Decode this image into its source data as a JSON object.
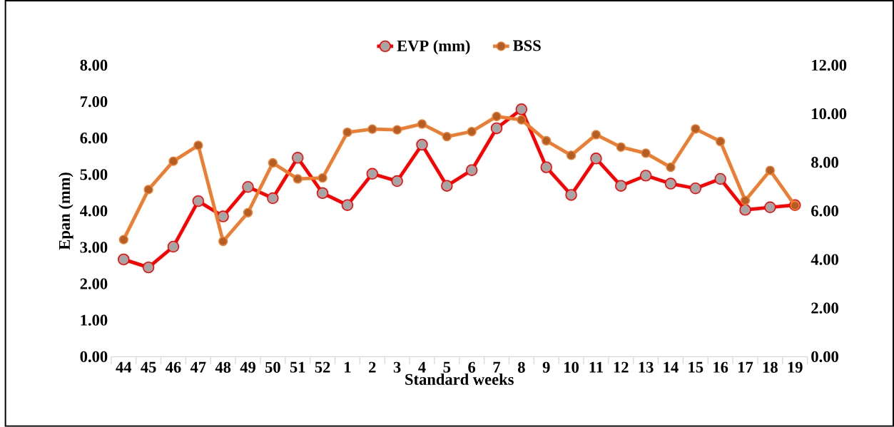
{
  "chart_data": {
    "type": "line",
    "xlabel": "Standard weeks",
    "ylabel": "Epan (mm)",
    "categories": [
      "44",
      "45",
      "46",
      "47",
      "48",
      "49",
      "50",
      "51",
      "52",
      "1",
      "2",
      "3",
      "4",
      "5",
      "6",
      "7",
      "8",
      "9",
      "10",
      "11",
      "12",
      "13",
      "14",
      "15",
      "16",
      "17",
      "18",
      "19"
    ],
    "series": [
      {
        "name": "EVP (mm)",
        "color": "#ff0000",
        "values": [
          2.67,
          2.45,
          3.02,
          4.27,
          3.85,
          4.66,
          4.35,
          5.46,
          4.49,
          4.16,
          5.02,
          4.82,
          5.82,
          4.69,
          5.12,
          6.27,
          6.79,
          5.2,
          4.44,
          5.44,
          4.69,
          4.97,
          4.75,
          4.62,
          4.88,
          4.03,
          4.1,
          4.16
        ]
      },
      {
        "name": "BSS",
        "color": "#ed7d31",
        "axis": "y2",
        "values": [
          4.82,
          6.88,
          8.05,
          8.7,
          4.75,
          5.93,
          7.98,
          7.32,
          7.36,
          9.24,
          9.37,
          9.34,
          9.58,
          9.06,
          9.27,
          9.89,
          9.75,
          8.89,
          8.29,
          9.14,
          8.63,
          8.38,
          7.8,
          9.38,
          8.86,
          6.43,
          7.67,
          6.22
        ]
      }
    ],
    "ylim": [
      0,
      8
    ],
    "yticks": [
      {
        "value": 0,
        "label": "0.00"
      },
      {
        "value": 1,
        "label": "1.00"
      },
      {
        "value": 2,
        "label": "2.00"
      },
      {
        "value": 3,
        "label": "3.00"
      },
      {
        "value": 4,
        "label": "4.00"
      },
      {
        "value": 5,
        "label": "5.00"
      },
      {
        "value": 6,
        "label": "6.00"
      },
      {
        "value": 7,
        "label": "7.00"
      },
      {
        "value": 8,
        "label": "8.00"
      }
    ],
    "y2lim": [
      0,
      12
    ],
    "y2ticks": [
      {
        "value": 0,
        "label": "0.00"
      },
      {
        "value": 2,
        "label": "2.00"
      },
      {
        "value": 4,
        "label": "4.00"
      },
      {
        "value": 6,
        "label": "6.00"
      },
      {
        "value": 8,
        "label": "8.00"
      },
      {
        "value": 10,
        "label": "10.00"
      },
      {
        "value": 12,
        "label": "12.00"
      }
    ],
    "legend": "top",
    "marker": "circle",
    "line_style": "solid"
  }
}
